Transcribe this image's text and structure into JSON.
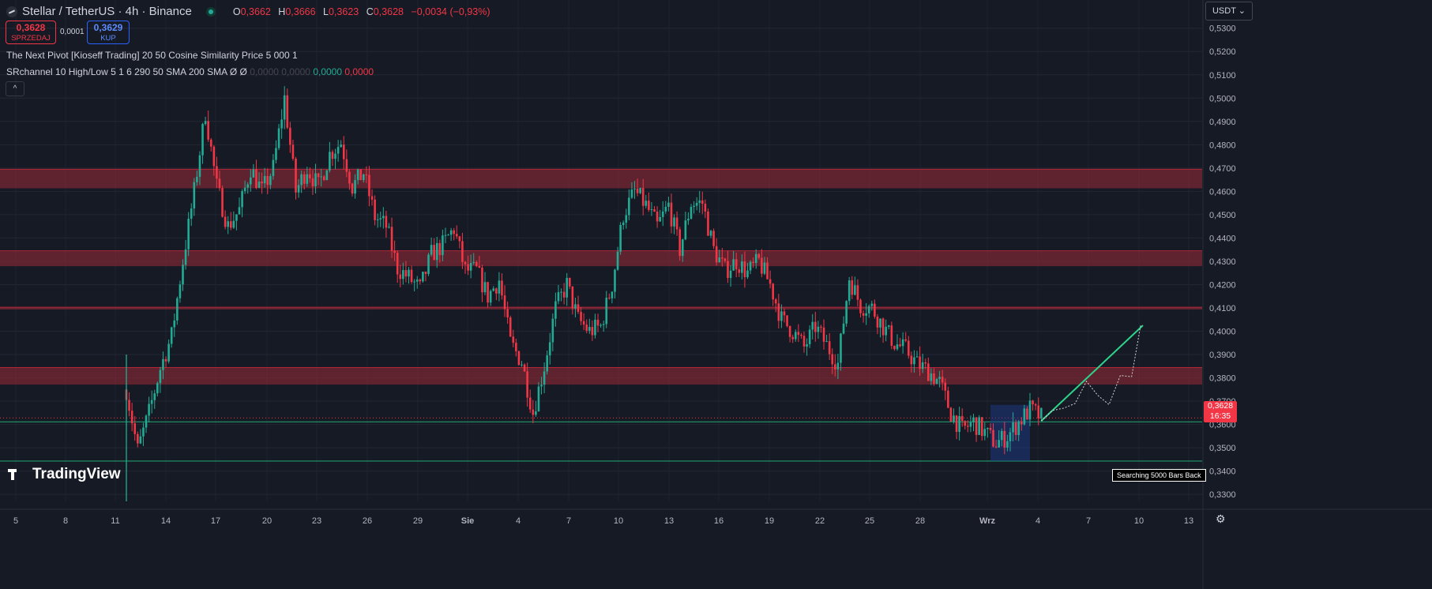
{
  "header": {
    "symbol": "Stellar / TetherUS · 4h · Binance",
    "ohlc": [
      {
        "k": "O",
        "v": "0,3662"
      },
      {
        "k": "H",
        "v": "0,3666"
      },
      {
        "k": "L",
        "v": "0,3623"
      },
      {
        "k": "C",
        "v": "0,3628"
      }
    ],
    "change": "−0,0034 (−0,93%)"
  },
  "trade": {
    "sell_price": "0,3628",
    "sell_label": "SPRZEDAJ",
    "spread": "0,0001",
    "buy_price": "0,3629",
    "buy_label": "KUP"
  },
  "indicators": {
    "line1": "The Next Pivot [Kioseff Trading] 20 50 Cosine Similarity Price 5 000 1",
    "line2_main": "SRchannel 10 High/Low 5 1 6 290 50 SMA 200 SMA",
    "line2_sym": "Ø  Ø",
    "line2_vals": [
      "0,0000",
      "0,0000"
    ],
    "line2_green": "0,0000",
    "line2_red": "0,0000",
    "collapse_icon": "^"
  },
  "currency_button": "USDT ⌄",
  "current_price": {
    "price": "0,3628",
    "countdown": "16:35"
  },
  "brand": "TradingView",
  "search_badge": "Searching 5000 Bars Back",
  "colors": {
    "background": "#161a25",
    "up": "#22ab94",
    "down": "#f23645",
    "zone": "#8b2a36",
    "projection": "#2ed48a",
    "pattern_box": "#1e3a8a"
  },
  "chart_data": {
    "type": "candlestick",
    "title": "Stellar / TetherUS · 4h · Binance",
    "y_ticks": [
      "0,5300",
      "0,5200",
      "0,5100",
      "0,5000",
      "0,4900",
      "0,4800",
      "0,4700",
      "0,4600",
      "0,4500",
      "0,4400",
      "0,4300",
      "0,4200",
      "0,4100",
      "0,4000",
      "0,3900",
      "0,3800",
      "0,3700",
      "0,3600",
      "0,3500",
      "0,3400",
      "0,3300"
    ],
    "ylim": [
      0.327,
      0.536
    ],
    "x_ticks": [
      "5",
      "8",
      "11",
      "14",
      "17",
      "20",
      "23",
      "26",
      "29",
      "Sie",
      "4",
      "7",
      "10",
      "13",
      "16",
      "19",
      "22",
      "25",
      "28",
      "Wrz",
      "4",
      "7",
      "10",
      "13"
    ],
    "path_points": [
      [
        0,
        0.375
      ],
      [
        1,
        0.349
      ],
      [
        2,
        0.365
      ],
      [
        3,
        0.384
      ],
      [
        4,
        0.398
      ],
      [
        5,
        0.43
      ],
      [
        6,
        0.46
      ],
      [
        7,
        0.494
      ],
      [
        8,
        0.462
      ],
      [
        9,
        0.445
      ],
      [
        10,
        0.452
      ],
      [
        11,
        0.47
      ],
      [
        12,
        0.46
      ],
      [
        13,
        0.47
      ],
      [
        14,
        0.5
      ],
      [
        15,
        0.46
      ],
      [
        16,
        0.47
      ],
      [
        17,
        0.462
      ],
      [
        18,
        0.476
      ],
      [
        19,
        0.481
      ],
      [
        20,
        0.462
      ],
      [
        21,
        0.468
      ],
      [
        22,
        0.449
      ],
      [
        23,
        0.445
      ],
      [
        24,
        0.427
      ],
      [
        25,
        0.423
      ],
      [
        26,
        0.418
      ],
      [
        27,
        0.433
      ],
      [
        28,
        0.437
      ],
      [
        29,
        0.444
      ],
      [
        30,
        0.426
      ],
      [
        31,
        0.426
      ],
      [
        32,
        0.415
      ],
      [
        33,
        0.422
      ],
      [
        34,
        0.395
      ],
      [
        35,
        0.387
      ],
      [
        36,
        0.365
      ],
      [
        37,
        0.385
      ],
      [
        38,
        0.41
      ],
      [
        39,
        0.42
      ],
      [
        40,
        0.405
      ],
      [
        41,
        0.4
      ],
      [
        42,
        0.402
      ],
      [
        43,
        0.42
      ],
      [
        44,
        0.45
      ],
      [
        45,
        0.46
      ],
      [
        46,
        0.454
      ],
      [
        47,
        0.445
      ],
      [
        48,
        0.454
      ],
      [
        49,
        0.435
      ],
      [
        50,
        0.455
      ],
      [
        51,
        0.455
      ],
      [
        52,
        0.435
      ],
      [
        53,
        0.426
      ],
      [
        54,
        0.43
      ],
      [
        55,
        0.425
      ],
      [
        56,
        0.43
      ],
      [
        57,
        0.42
      ],
      [
        58,
        0.405
      ],
      [
        59,
        0.4
      ],
      [
        60,
        0.393
      ],
      [
        61,
        0.402
      ],
      [
        62,
        0.394
      ],
      [
        63,
        0.386
      ],
      [
        64,
        0.423
      ],
      [
        65,
        0.411
      ],
      [
        66,
        0.41
      ],
      [
        67,
        0.402
      ],
      [
        68,
        0.395
      ],
      [
        69,
        0.392
      ],
      [
        70,
        0.386
      ],
      [
        71,
        0.383
      ],
      [
        72,
        0.378
      ],
      [
        73,
        0.365
      ],
      [
        74,
        0.3575
      ],
      [
        75,
        0.361
      ],
      [
        76,
        0.3565
      ],
      [
        77,
        0.352
      ],
      [
        78,
        0.355
      ],
      [
        79,
        0.361
      ],
      [
        80,
        0.3665
      ],
      [
        81,
        0.363
      ]
    ],
    "sr_zones": [
      [
        0.4613,
        0.4695
      ],
      [
        0.4279,
        0.4345
      ],
      [
        0.4093,
        0.4103
      ],
      [
        0.3771,
        0.3844
      ]
    ],
    "support_lines": [
      0.3611,
      0.3443
    ],
    "current_price_line": 0.3628,
    "pattern_box": {
      "x_from": 76.5,
      "x_to": 80,
      "y_from": 0.3443,
      "y_to": 0.3684
    },
    "projection_line": [
      [
        81,
        0.3615
      ],
      [
        90,
        0.4025
      ]
    ],
    "projection_dotted": [
      [
        81,
        0.3615
      ],
      [
        82,
        0.366
      ],
      [
        83,
        0.367
      ],
      [
        84,
        0.369
      ],
      [
        85,
        0.3785
      ],
      [
        86,
        0.3725
      ],
      [
        87,
        0.3685
      ],
      [
        88,
        0.381
      ],
      [
        89,
        0.3805
      ],
      [
        89.8,
        0.4025
      ]
    ]
  }
}
